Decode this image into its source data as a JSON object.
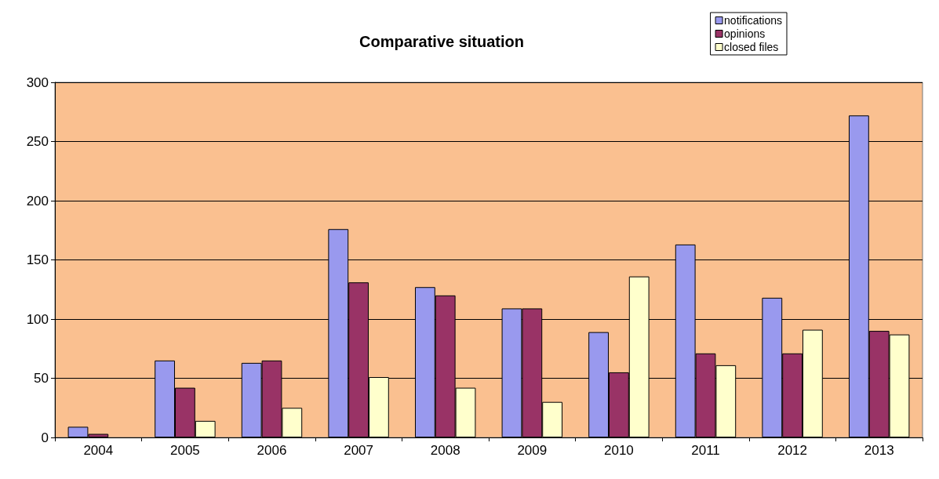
{
  "chart_data": {
    "type": "bar",
    "title": "Comparative situation",
    "categories": [
      "2004",
      "2005",
      "2006",
      "2007",
      "2008",
      "2009",
      "2010",
      "2011",
      "2012",
      "2013"
    ],
    "series": [
      {
        "name": "notifications",
        "color": "#9999ee",
        "values": [
          9,
          65,
          63,
          176,
          127,
          109,
          89,
          163,
          118,
          272
        ]
      },
      {
        "name": "opinions",
        "color": "#993366",
        "values": [
          3,
          42,
          65,
          131,
          120,
          109,
          55,
          71,
          71,
          90
        ]
      },
      {
        "name": "closed files",
        "color": "#ffffcc",
        "values": [
          null,
          14,
          25,
          51,
          42,
          30,
          136,
          61,
          91,
          87
        ]
      }
    ],
    "ylim": [
      0,
      300
    ],
    "yticks": [
      0,
      50,
      100,
      150,
      200,
      250,
      300
    ],
    "grid": "y",
    "legend": "top right"
  }
}
